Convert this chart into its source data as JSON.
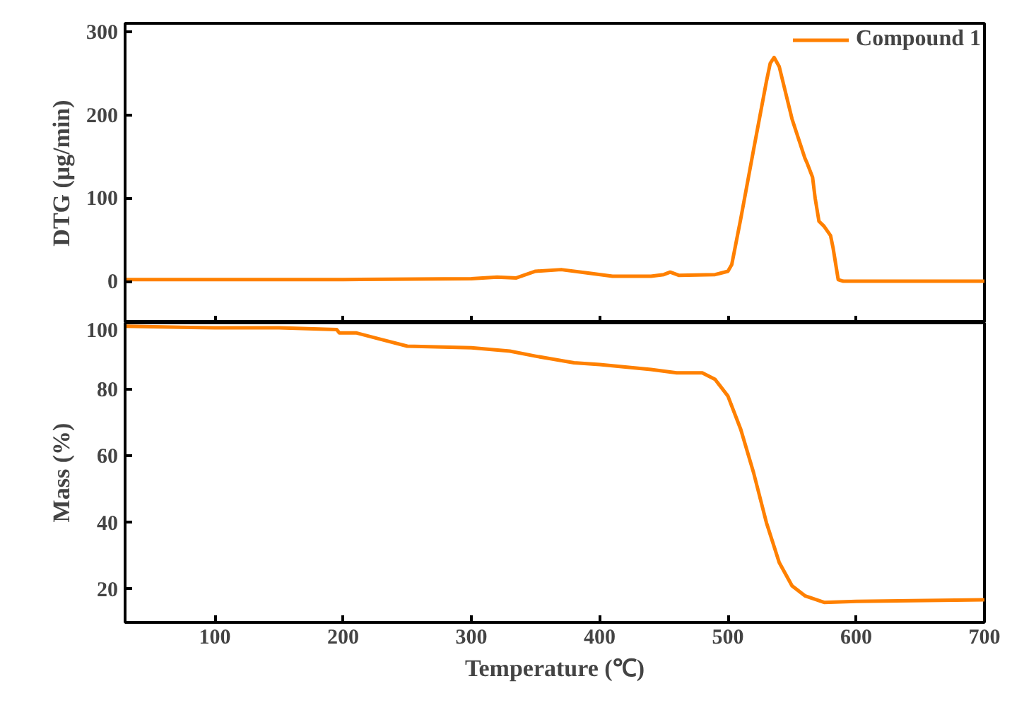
{
  "chart_data": [
    {
      "type": "line",
      "ylabel": "DTG (μg/min)",
      "xlim": [
        30,
        700
      ],
      "ylim": [
        -50,
        310
      ],
      "xticks": [
        100,
        200,
        300,
        400,
        500,
        600,
        700
      ],
      "yticks": [
        0,
        100,
        200,
        300
      ],
      "tick_labels": "y",
      "legend": "top right",
      "x": [
        30,
        100,
        200,
        300,
        320,
        335,
        350,
        370,
        390,
        410,
        440,
        450,
        455,
        462,
        490,
        500,
        503,
        510,
        520,
        530,
        533,
        536,
        540,
        550,
        560,
        562,
        566,
        568,
        571,
        575,
        580,
        582,
        586,
        590,
        650,
        700
      ],
      "series": [
        {
          "name": "Compound 1",
          "color": "#ff8000",
          "values": [
            2,
            2,
            2,
            3,
            5,
            4,
            12,
            14,
            10,
            6,
            6,
            8,
            11,
            7,
            8,
            12,
            20,
            75,
            158,
            240,
            262,
            269,
            258,
            195,
            148,
            141,
            125,
            100,
            72,
            66,
            55,
            40,
            2,
            0,
            0,
            0
          ]
        }
      ]
    },
    {
      "type": "line",
      "xlabel": "Temperature (℃)",
      "ylabel": "Mass (%)",
      "xlim": [
        30,
        700
      ],
      "ylim": [
        10,
        100
      ],
      "xticks": [
        100,
        200,
        300,
        400,
        500,
        600,
        700
      ],
      "yticks": [
        20,
        40,
        60,
        80,
        100
      ],
      "x": [
        30,
        100,
        150,
        195,
        197,
        210,
        230,
        250,
        300,
        330,
        350,
        380,
        400,
        440,
        460,
        480,
        490,
        500,
        510,
        520,
        530,
        540,
        550,
        560,
        575,
        600,
        700
      ],
      "series": [
        {
          "color": "#ff8000",
          "values": [
            99,
            98.5,
            98.5,
            98,
            97,
            97,
            95,
            93,
            92.5,
            91.5,
            90,
            88,
            87.5,
            86,
            85,
            85,
            83,
            78,
            68,
            55,
            40,
            28,
            21,
            18,
            16,
            16.3,
            16.8
          ]
        }
      ]
    }
  ]
}
